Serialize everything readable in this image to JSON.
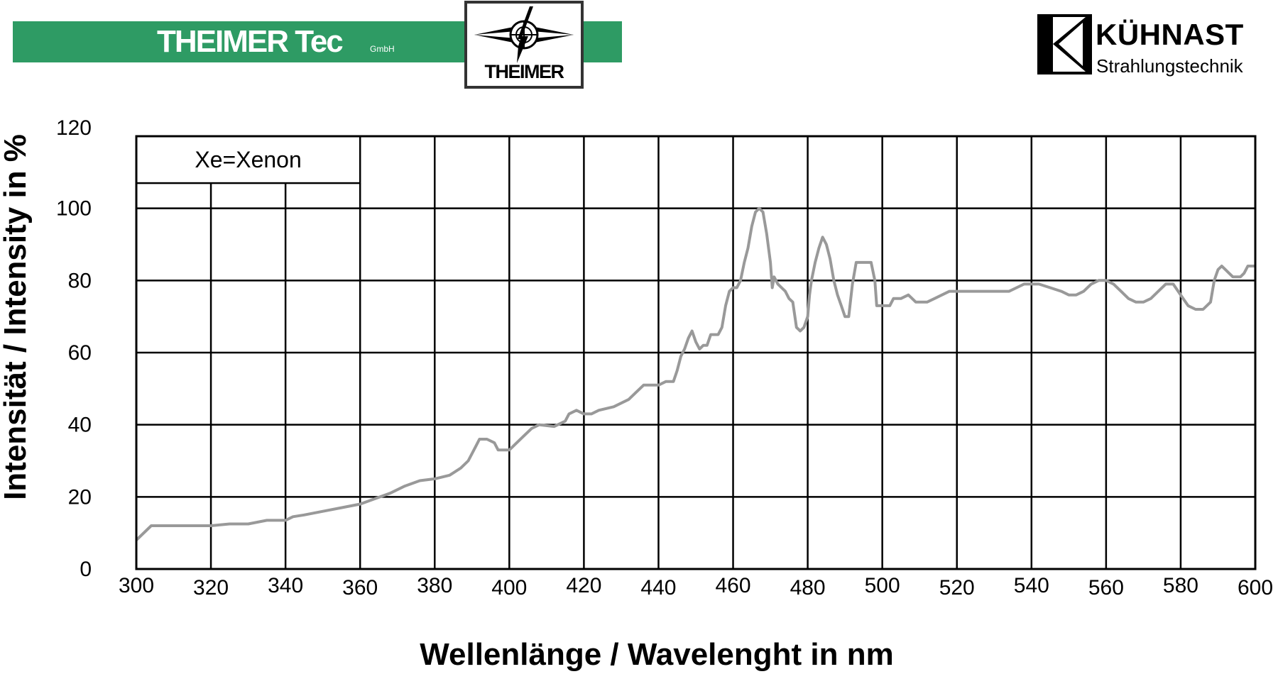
{
  "header": {
    "left_brand": "THEIMER Tec",
    "left_brand_suffix": "GmbH",
    "logo_text": "THEIMER",
    "right_brand": "KÜHNAST",
    "right_brand_sub": "Strahlungstechnik",
    "left_brand_color": "#2e9b64"
  },
  "chart_data": {
    "type": "line",
    "xlabel": "Wellenlänge / Wavelenght in nm",
    "ylabel": "Intensität / Intensity in %",
    "legend": "Xe=Xenon",
    "legend_position": "top-left",
    "grid": true,
    "xlim": [
      300,
      600
    ],
    "ylim": [
      0,
      120
    ],
    "xticks": [
      300,
      320,
      340,
      360,
      380,
      400,
      420,
      440,
      460,
      480,
      500,
      520,
      540,
      560,
      580,
      600
    ],
    "yticks": [
      0,
      20,
      40,
      60,
      80,
      100,
      120
    ],
    "line_color": "#999999",
    "series": [
      {
        "points": [
          [
            300,
            8
          ],
          [
            304,
            12
          ],
          [
            310,
            12
          ],
          [
            320,
            12
          ],
          [
            325,
            12.5
          ],
          [
            330,
            12.5
          ],
          [
            335,
            13.5
          ],
          [
            340,
            13.5
          ],
          [
            342,
            14.5
          ],
          [
            345,
            15
          ],
          [
            350,
            16
          ],
          [
            355,
            17
          ],
          [
            360,
            18
          ],
          [
            364,
            19.5
          ],
          [
            368,
            21
          ],
          [
            372,
            23
          ],
          [
            376,
            24.5
          ],
          [
            380,
            25
          ],
          [
            384,
            26
          ],
          [
            387,
            28
          ],
          [
            389,
            30
          ],
          [
            391,
            34
          ],
          [
            392,
            36
          ],
          [
            394,
            36
          ],
          [
            396,
            35
          ],
          [
            397,
            33
          ],
          [
            400,
            33
          ],
          [
            402,
            35
          ],
          [
            404,
            37
          ],
          [
            406,
            39
          ],
          [
            408,
            40
          ],
          [
            412,
            39.5
          ],
          [
            415,
            41
          ],
          [
            416,
            43
          ],
          [
            418,
            44
          ],
          [
            420,
            43
          ],
          [
            422,
            43
          ],
          [
            424,
            44
          ],
          [
            428,
            45
          ],
          [
            430,
            46
          ],
          [
            432,
            47
          ],
          [
            434,
            49
          ],
          [
            436,
            51
          ],
          [
            438,
            51
          ],
          [
            440,
            51
          ],
          [
            442,
            52
          ],
          [
            444,
            52
          ],
          [
            445,
            55
          ],
          [
            446,
            59
          ],
          [
            447,
            61
          ],
          [
            448,
            64
          ],
          [
            449,
            66
          ],
          [
            450,
            63
          ],
          [
            451,
            61
          ],
          [
            452,
            62
          ],
          [
            453,
            62
          ],
          [
            454,
            65
          ],
          [
            456,
            65
          ],
          [
            457,
            67
          ],
          [
            458,
            73
          ],
          [
            459,
            77
          ],
          [
            460,
            78
          ],
          [
            461,
            78
          ],
          [
            462,
            80
          ],
          [
            463,
            85
          ],
          [
            464,
            89
          ],
          [
            465,
            95
          ],
          [
            466,
            99
          ],
          [
            467,
            100
          ],
          [
            468,
            99
          ],
          [
            469,
            93
          ],
          [
            470,
            85
          ],
          [
            470.5,
            78
          ],
          [
            471,
            81
          ],
          [
            472,
            79
          ],
          [
            473,
            78
          ],
          [
            474,
            77
          ],
          [
            475,
            75
          ],
          [
            476,
            74
          ],
          [
            477,
            67
          ],
          [
            478,
            66
          ],
          [
            479,
            67
          ],
          [
            480,
            70
          ],
          [
            480.5,
            76
          ],
          [
            481,
            80
          ],
          [
            482,
            85
          ],
          [
            483,
            89
          ],
          [
            484,
            92
          ],
          [
            485,
            90
          ],
          [
            486,
            86
          ],
          [
            487,
            80
          ],
          [
            488,
            76
          ],
          [
            489,
            73
          ],
          [
            490,
            70
          ],
          [
            491,
            70
          ],
          [
            492,
            79
          ],
          [
            493,
            85
          ],
          [
            495,
            85
          ],
          [
            497,
            85
          ],
          [
            498,
            80
          ],
          [
            498.5,
            73
          ],
          [
            500,
            73
          ],
          [
            502,
            73
          ],
          [
            503,
            75
          ],
          [
            505,
            75
          ],
          [
            507,
            76
          ],
          [
            509,
            74
          ],
          [
            512,
            74
          ],
          [
            514,
            75
          ],
          [
            516,
            76
          ],
          [
            518,
            77
          ],
          [
            520,
            77
          ],
          [
            525,
            77
          ],
          [
            530,
            77
          ],
          [
            534,
            77
          ],
          [
            536,
            78
          ],
          [
            538,
            79
          ],
          [
            542,
            79
          ],
          [
            545,
            78
          ],
          [
            548,
            77
          ],
          [
            550,
            76
          ],
          [
            552,
            76
          ],
          [
            554,
            77
          ],
          [
            556,
            79
          ],
          [
            558,
            80
          ],
          [
            560,
            80
          ],
          [
            562,
            79
          ],
          [
            564,
            77
          ],
          [
            566,
            75
          ],
          [
            568,
            74
          ],
          [
            570,
            74
          ],
          [
            572,
            75
          ],
          [
            574,
            77
          ],
          [
            576,
            79
          ],
          [
            578,
            79
          ],
          [
            580,
            76
          ],
          [
            582,
            73
          ],
          [
            584,
            72
          ],
          [
            586,
            72
          ],
          [
            588,
            74
          ],
          [
            588.5,
            77
          ],
          [
            589,
            80
          ],
          [
            590,
            83
          ],
          [
            591,
            84
          ],
          [
            592,
            83
          ],
          [
            593,
            82
          ],
          [
            594,
            81
          ],
          [
            596,
            81
          ],
          [
            597,
            82
          ],
          [
            598,
            84
          ],
          [
            600,
            84
          ]
        ]
      }
    ]
  }
}
